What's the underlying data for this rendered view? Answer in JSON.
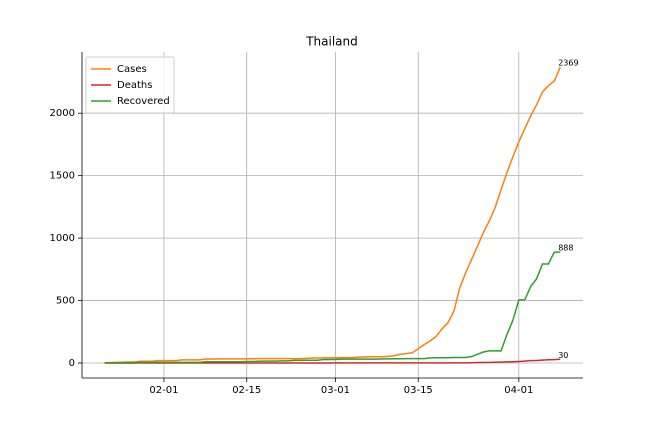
{
  "chart_data": {
    "type": "line",
    "title": "Thailand",
    "x": [
      "01-22",
      "01-23",
      "01-24",
      "01-25",
      "01-26",
      "01-27",
      "01-28",
      "01-29",
      "01-30",
      "01-31",
      "02-01",
      "02-02",
      "02-03",
      "02-04",
      "02-05",
      "02-06",
      "02-07",
      "02-08",
      "02-09",
      "02-10",
      "02-11",
      "02-12",
      "02-13",
      "02-14",
      "02-15",
      "02-16",
      "02-17",
      "02-18",
      "02-19",
      "02-20",
      "02-21",
      "02-22",
      "02-23",
      "02-24",
      "02-25",
      "02-26",
      "02-27",
      "02-28",
      "02-29",
      "03-01",
      "03-02",
      "03-03",
      "03-04",
      "03-05",
      "03-06",
      "03-07",
      "03-08",
      "03-09",
      "03-10",
      "03-11",
      "03-12",
      "03-13",
      "03-14",
      "03-15",
      "03-16",
      "03-17",
      "03-18",
      "03-19",
      "03-20",
      "03-21",
      "03-22",
      "03-23",
      "03-24",
      "03-25",
      "03-26",
      "03-27",
      "03-28",
      "03-29",
      "03-30",
      "03-31",
      "04-01",
      "04-02",
      "04-03",
      "04-04",
      "04-05",
      "04-06",
      "04-07",
      "04-08"
    ],
    "series": [
      {
        "name": "Cases",
        "color": "#ff7f0e",
        "values": [
          2,
          3,
          5,
          7,
          8,
          8,
          14,
          14,
          14,
          19,
          19,
          19,
          19,
          25,
          25,
          25,
          25,
          32,
          32,
          32,
          33,
          33,
          33,
          33,
          33,
          34,
          35,
          35,
          35,
          35,
          35,
          35,
          35,
          35,
          37,
          40,
          40,
          41,
          42,
          42,
          43,
          43,
          43,
          47,
          48,
          50,
          50,
          50,
          53,
          59,
          70,
          75,
          82,
          114,
          147,
          177,
          212,
          272,
          322,
          411,
          599,
          721,
          827,
          934,
          1045,
          1136,
          1245,
          1388,
          1524,
          1651,
          1771,
          1875,
          1978,
          2067,
          2169,
          2220,
          2258,
          2369
        ]
      },
      {
        "name": "Deaths",
        "color": "#d62728",
        "values": [
          0,
          0,
          0,
          0,
          0,
          0,
          0,
          0,
          0,
          0,
          0,
          0,
          0,
          0,
          0,
          0,
          0,
          0,
          0,
          0,
          0,
          0,
          0,
          0,
          0,
          0,
          0,
          0,
          0,
          0,
          0,
          0,
          0,
          0,
          0,
          0,
          0,
          0,
          0,
          1,
          1,
          1,
          1,
          1,
          1,
          1,
          1,
          1,
          1,
          1,
          1,
          1,
          1,
          1,
          1,
          1,
          1,
          1,
          1,
          1,
          1,
          1,
          2,
          4,
          4,
          5,
          6,
          7,
          9,
          10,
          12,
          15,
          19,
          20,
          23,
          26,
          27,
          30
        ]
      },
      {
        "name": "Recovered",
        "color": "#2ca02c",
        "values": [
          0,
          0,
          0,
          0,
          0,
          0,
          5,
          5,
          5,
          5,
          5,
          5,
          5,
          5,
          5,
          5,
          5,
          10,
          10,
          10,
          10,
          10,
          10,
          10,
          12,
          12,
          14,
          15,
          15,
          15,
          17,
          17,
          21,
          21,
          22,
          22,
          22,
          28,
          28,
          28,
          31,
          31,
          31,
          31,
          31,
          31,
          31,
          33,
          33,
          34,
          34,
          35,
          35,
          35,
          35,
          41,
          42,
          42,
          42,
          44,
          44,
          44,
          52,
          70,
          88,
          97,
          97,
          97,
          229,
          342,
          505,
          505,
          612,
          674,
          793,
          793,
          888,
          888
        ]
      }
    ],
    "xticks": [
      "02-01",
      "02-15",
      "03-01",
      "03-15",
      "04-01"
    ],
    "ylim": [
      -120,
      2490
    ],
    "yticks": [
      0,
      500,
      1000,
      1500,
      2000
    ],
    "grid": true,
    "legend": "upper left"
  }
}
